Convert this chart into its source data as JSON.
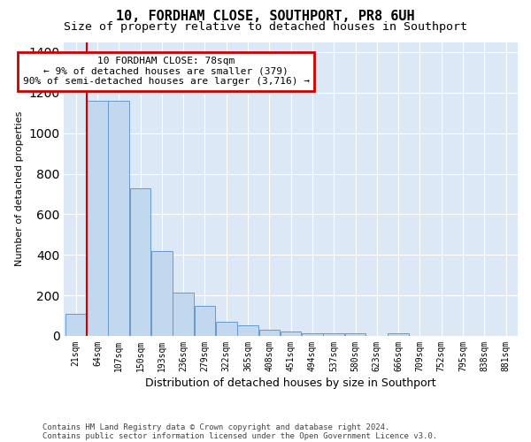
{
  "title": "10, FORDHAM CLOSE, SOUTHPORT, PR8 6UH",
  "subtitle": "Size of property relative to detached houses in Southport",
  "xlabel": "Distribution of detached houses by size in Southport",
  "ylabel": "Number of detached properties",
  "footer_line1": "Contains HM Land Registry data © Crown copyright and database right 2024.",
  "footer_line2": "Contains public sector information licensed under the Open Government Licence v3.0.",
  "categories": [
    "21sqm",
    "64sqm",
    "107sqm",
    "150sqm",
    "193sqm",
    "236sqm",
    "279sqm",
    "322sqm",
    "365sqm",
    "408sqm",
    "451sqm",
    "494sqm",
    "537sqm",
    "580sqm",
    "623sqm",
    "666sqm",
    "709sqm",
    "752sqm",
    "795sqm",
    "838sqm",
    "881sqm"
  ],
  "bar_values": [
    110,
    1160,
    1160,
    730,
    420,
    215,
    150,
    70,
    50,
    30,
    20,
    15,
    15,
    15,
    0,
    15,
    0,
    0,
    0,
    0,
    0
  ],
  "bar_color": "#c2d8ee",
  "bar_edge_color": "#6699cc",
  "red_line_x": 0.5,
  "annotation_text": "10 FORDHAM CLOSE: 78sqm\n← 9% of detached houses are smaller (379)\n90% of semi-detached houses are larger (3,716) →",
  "ann_box_fc": "#ffffff",
  "ann_box_ec": "#cc0000",
  "ylim_max": 1450,
  "fig_bg": "#ffffff",
  "ax_bg": "#dce8f5",
  "grid_color": "#ffffff",
  "title_fontsize": 11,
  "subtitle_fontsize": 9.5,
  "ylabel_fontsize": 8,
  "xlabel_fontsize": 9,
  "tick_fontsize": 7,
  "footer_fontsize": 6.5,
  "ann_fontsize": 8
}
